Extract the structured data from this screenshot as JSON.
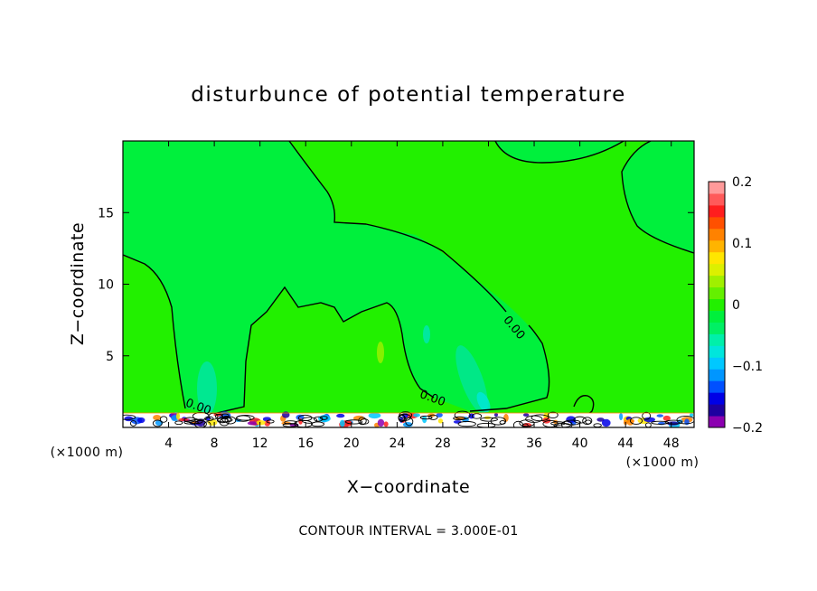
{
  "title": "disturbunce of potential temperature",
  "footer": "CONTOUR INTERVAL = 3.000E-01",
  "chart_data": {
    "type": "heatmap",
    "title": "disturbunce of potential temperature",
    "xlabel": "X−coordinate",
    "ylabel": "Z−coordinate",
    "x_unit_label": "(×1000 m)",
    "x_unit_label_right": "(×1000 m)",
    "xlim": [
      0,
      50
    ],
    "ylim": [
      0,
      20
    ],
    "x_ticks": [
      4,
      8,
      12,
      16,
      20,
      24,
      28,
      32,
      36,
      40,
      44,
      48
    ],
    "x_tick_labels": [
      "4",
      "8",
      "12",
      "16",
      "20",
      "24",
      "28",
      "32",
      "36",
      "40",
      "44",
      "48"
    ],
    "y_ticks": [
      5,
      10,
      15
    ],
    "y_tick_labels": [
      "5",
      "10",
      "15"
    ],
    "colorbar": {
      "min": -0.2,
      "max": 0.2,
      "ticks": [
        0.2,
        0.1,
        0,
        -0.1,
        -0.2
      ],
      "tick_labels": [
        "0.2",
        "0.1",
        "0",
        "−0.1",
        "−0.2"
      ],
      "colors": [
        "#8B00B0",
        "#1E00A0",
        "#0000E6",
        "#0050FF",
        "#0096FF",
        "#00C8FF",
        "#00E6DC",
        "#00F0AA",
        "#00F064",
        "#00F03C",
        "#22F000",
        "#64F000",
        "#A0F000",
        "#DCF000",
        "#FFE600",
        "#FFB400",
        "#FF8200",
        "#FF5000",
        "#FF1E1E",
        "#FF5A5A",
        "#FF9A9A"
      ]
    },
    "background_value_color": "#22F000",
    "near_zero_region_color": "#00F03C",
    "contour_labels": [
      {
        "text": "0.00",
        "x": 34,
        "z": 6.8
      },
      {
        "text": "0.00",
        "x": 27,
        "z": 1.8
      },
      {
        "text": "0.00",
        "x": 6.5,
        "z": 1.2
      }
    ],
    "grid": false,
    "legend": "colorbar-right"
  }
}
